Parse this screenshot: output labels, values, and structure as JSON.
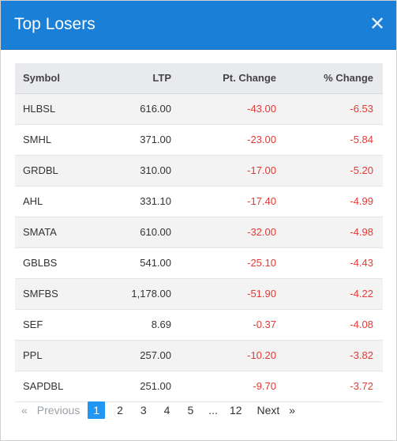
{
  "modal": {
    "title": "Top Losers",
    "close_glyph": "✕"
  },
  "table": {
    "headers": {
      "symbol": "Symbol",
      "ltp": "LTP",
      "pt_change": "Pt. Change",
      "pct_change": "% Change"
    },
    "rows": [
      {
        "symbol": "HLBSL",
        "ltp": "616.00",
        "pt": "-43.00",
        "pct": "-6.53"
      },
      {
        "symbol": "SMHL",
        "ltp": "371.00",
        "pt": "-23.00",
        "pct": "-5.84"
      },
      {
        "symbol": "GRDBL",
        "ltp": "310.00",
        "pt": "-17.00",
        "pct": "-5.20"
      },
      {
        "symbol": "AHL",
        "ltp": "331.10",
        "pt": "-17.40",
        "pct": "-4.99"
      },
      {
        "symbol": "SMATA",
        "ltp": "610.00",
        "pt": "-32.00",
        "pct": "-4.98"
      },
      {
        "symbol": "GBLBS",
        "ltp": "541.00",
        "pt": "-25.10",
        "pct": "-4.43"
      },
      {
        "symbol": "SMFBS",
        "ltp": "1,178.00",
        "pt": "-51.90",
        "pct": "-4.22"
      },
      {
        "symbol": "SEF",
        "ltp": "8.69",
        "pt": "-0.37",
        "pct": "-4.08"
      },
      {
        "symbol": "PPL",
        "ltp": "257.00",
        "pt": "-10.20",
        "pct": "-3.82"
      },
      {
        "symbol": "SAPDBL",
        "ltp": "251.00",
        "pt": "-9.70",
        "pct": "-3.72"
      }
    ]
  },
  "pagination": {
    "prev_glyph": "«",
    "prev_label": "Previous",
    "pages": [
      "1",
      "2",
      "3",
      "4",
      "5"
    ],
    "ellipsis": "...",
    "last_page": "12",
    "next_label": "Next",
    "next_glyph": "»",
    "current": "1"
  },
  "colors": {
    "header_bg": "#1a7fd6",
    "negative": "#e53935",
    "active_page": "#2196f3"
  }
}
